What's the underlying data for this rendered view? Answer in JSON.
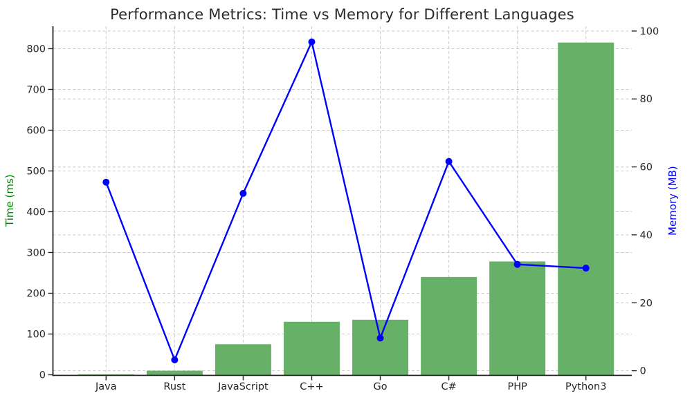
{
  "figure": {
    "title": "Performance Metrics: Time vs Memory for Different Languages"
  },
  "chart_data": {
    "type": "bar+line (dual y-axis)",
    "title": "Performance Metrics: Time vs Memory for Different Languages",
    "categories": [
      "Java",
      "Rust",
      "JavaScript",
      "C++",
      "Go",
      "C#",
      "PHP",
      "Python3"
    ],
    "series": [
      {
        "name": "Time (ms)",
        "type": "bar",
        "axis": "left",
        "color": "#67b067",
        "values": [
          1,
          10,
          75,
          130,
          135,
          240,
          278,
          815
        ]
      },
      {
        "name": "Memory (MB)",
        "type": "line",
        "axis": "right",
        "color": "#0000ff",
        "marker": "circle",
        "values": [
          55.5,
          3.2,
          52.2,
          96.8,
          9.6,
          61.6,
          31.3,
          30.2
        ]
      }
    ],
    "xlabel": "",
    "ylabel_left": "Time (ms)",
    "ylabel_right": "Memory (MB)",
    "ylabel_left_color": "#008000",
    "ylabel_right_color": "#0000ff",
    "ylim_left": [
      0,
      855
    ],
    "ylim_right": [
      -1.2,
      101.4
    ],
    "yticks_left": [
      0,
      100,
      200,
      300,
      400,
      500,
      600,
      700,
      800
    ],
    "yticks_right": [
      0,
      20,
      40,
      60,
      80,
      100
    ],
    "grid": true,
    "grid_style": "dashed",
    "grid_color": "#c9c9c9",
    "tick_color": "#262626",
    "legend": "none"
  }
}
